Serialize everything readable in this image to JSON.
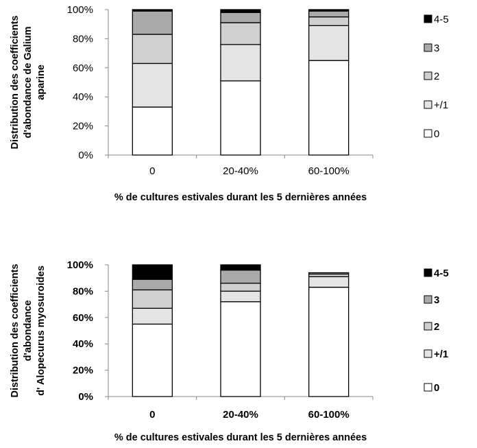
{
  "chart_data": [
    {
      "type": "bar",
      "stacked": true,
      "categories": [
        "0",
        "20-40%",
        "60-100%"
      ],
      "xlabel": "% de cultures estivales durant les 5 dernières années",
      "ylabel": [
        "Distribution des coefficients",
        "d'abondance de Galium",
        "aparine"
      ],
      "ylim": [
        0,
        100
      ],
      "yticks": [
        "0%",
        "20%",
        "40%",
        "60%",
        "80%",
        "100%"
      ],
      "legend_position": "right",
      "series": [
        {
          "name": "0",
          "color": "#ffffff",
          "values": [
            33,
            51,
            65
          ]
        },
        {
          "name": "+/1",
          "color": "#e4e4e4",
          "values": [
            30,
            25,
            24
          ]
        },
        {
          "name": "2",
          "color": "#d0d0d0",
          "values": [
            20,
            15,
            6
          ]
        },
        {
          "name": "3",
          "color": "#aaaaaa",
          "values": [
            16,
            7,
            4
          ]
        },
        {
          "name": "4-5",
          "color": "#000000",
          "values": [
            1,
            2,
            1
          ]
        }
      ]
    },
    {
      "type": "bar",
      "stacked": true,
      "categories": [
        "0",
        "20-40%",
        "60-100%"
      ],
      "xlabel": "% de cultures estivales durant les 5 dernières années",
      "ylabel": [
        "Distribution des coefficients",
        "d'abondance",
        "d' Alopecurus myosuroides"
      ],
      "ylim": [
        0,
        100
      ],
      "yticks": [
        "0%",
        "20%",
        "40%",
        "60%",
        "80%",
        "100%"
      ],
      "legend_position": "right",
      "series": [
        {
          "name": "0",
          "color": "#ffffff",
          "values": [
            55,
            72,
            83
          ]
        },
        {
          "name": "+/1",
          "color": "#e4e4e4",
          "values": [
            12,
            8,
            8
          ]
        },
        {
          "name": "2",
          "color": "#d0d0d0",
          "values": [
            14,
            6,
            2
          ]
        },
        {
          "name": "3",
          "color": "#aaaaaa",
          "values": [
            8,
            10,
            1
          ]
        },
        {
          "name": "4-5",
          "color": "#000000",
          "values": [
            11,
            4,
            0
          ]
        }
      ]
    }
  ]
}
